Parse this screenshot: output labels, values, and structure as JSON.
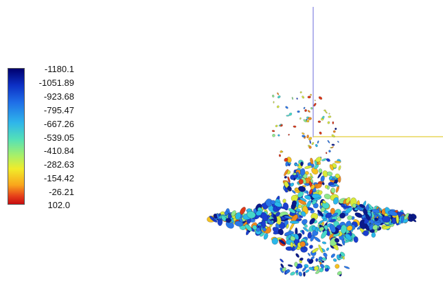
{
  "colorbar": {
    "labels": [
      "-1180.1",
      "-1051.89",
      "-923.68",
      "-795.47",
      "-667.26",
      "-539.05",
      "-410.84",
      "-282.63",
      "-154.42",
      "-26.21",
      "102.0"
    ],
    "colors": [
      "#00006e",
      "#0c2fc4",
      "#1f6fe8",
      "#2fb6ea",
      "#53e0b8",
      "#a6f06a",
      "#f1ec2a",
      "#f9a51c",
      "#e6411a",
      "#c80c10"
    ]
  },
  "scene": {
    "axis_colors": {
      "vertical": "#6a6ad8",
      "horizontal": "#e8d55a"
    },
    "palette": [
      "#1a3fd0",
      "#2a78e8",
      "#2ab8ea",
      "#46d8c8",
      "#8fe88a",
      "#d8ea3a",
      "#f6c21f",
      "#f08a1c",
      "#dc3a18",
      "#0a1a8a"
    ]
  }
}
